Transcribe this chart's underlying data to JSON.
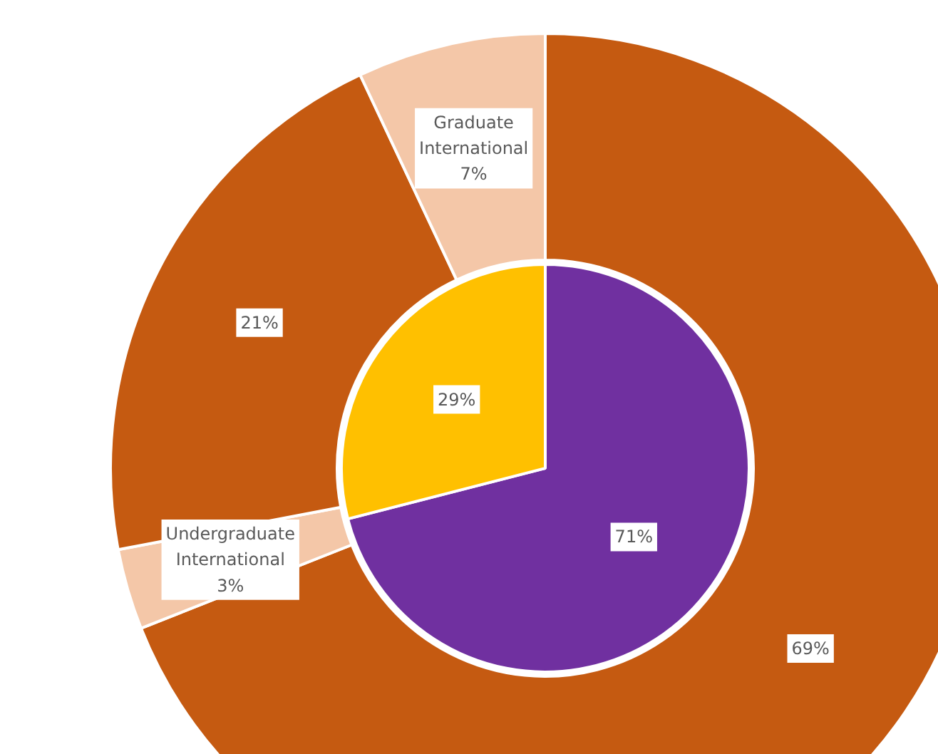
{
  "chart_data": [
    {
      "type": "pie",
      "categories": [
        null,
        null
      ],
      "values": [
        71,
        29
      ],
      "colors": [
        "#7030a0",
        "#ffc000"
      ],
      "value_labels": [
        "71%",
        "29%"
      ]
    },
    {
      "type": "donut",
      "categories": [
        null,
        "Undergraduate International",
        null,
        "Graduate International"
      ],
      "values": [
        69,
        3,
        21,
        7
      ],
      "colors": [
        "#c55a11",
        "#f4c7a8",
        "#c55a11",
        "#f4c7a8"
      ],
      "value_labels": [
        "69%",
        "3%",
        "21%",
        "7%"
      ]
    }
  ]
}
